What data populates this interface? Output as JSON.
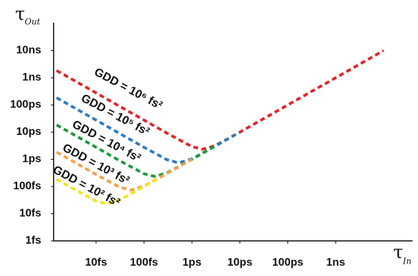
{
  "chart_data": {
    "type": "line",
    "x_label": "τ",
    "x_label_sub": "In",
    "y_label": "τ",
    "y_label_sub": "Out",
    "log_x": true,
    "log_y": true,
    "xlim": [
      1.3,
      40000000
    ],
    "ylim": [
      1,
      100000000
    ],
    "xticks": [
      {
        "value": 10,
        "label": "10fs"
      },
      {
        "value": 100,
        "label": "100fs"
      },
      {
        "value": 1000,
        "label": "1ps"
      },
      {
        "value": 10000,
        "label": "10ps"
      },
      {
        "value": 100000,
        "label": "100ps"
      },
      {
        "value": 1000000,
        "label": "1ns"
      }
    ],
    "yticks": [
      {
        "value": 1,
        "label": "1fs"
      },
      {
        "value": 10,
        "label": "10fs"
      },
      {
        "value": 100,
        "label": "100fs"
      },
      {
        "value": 1000,
        "label": "1ps"
      },
      {
        "value": 10000,
        "label": "10ps"
      },
      {
        "value": 100000,
        "label": "100ps"
      },
      {
        "value": 1000000,
        "label": "1ns"
      },
      {
        "value": 10000000,
        "label": "10ns"
      }
    ],
    "series": [
      {
        "color": "#e0262a",
        "annotation": "GDD = 10⁶ fs²",
        "x": [
          1.5,
          3,
          10,
          30,
          100,
          300,
          1000,
          1664,
          3000,
          10000,
          100000,
          1000000,
          10000000
        ],
        "values": [
          1846667,
          923333,
          277000,
          92333,
          27700,
          9238,
          2945,
          2354,
          3139,
          10000,
          100000,
          1000000,
          10000000
        ]
      },
      {
        "color": "#2e7cc2",
        "annotation": "GDD = 10⁵ fs²",
        "x": [
          1.5,
          3,
          10,
          30,
          100,
          300,
          526,
          1000,
          3000,
          10000
        ],
        "values": [
          184667,
          92333,
          27700,
          9233,
          2770,
          971,
          744,
          1037,
          3000,
          10000
        ]
      },
      {
        "color": "#1a9a3a",
        "annotation": "GDD = 10⁴ fs²",
        "x": [
          1.5,
          3,
          10,
          30,
          100,
          166,
          300,
          1000,
          3000
        ],
        "values": [
          18467,
          9233,
          2770,
          923,
          294,
          235,
          314,
          1000,
          3000
        ]
      },
      {
        "color": "#f5a04a",
        "annotation": "GDD = 10³ fs²",
        "x": [
          1.5,
          3,
          10,
          30,
          53,
          100,
          300,
          1000
        ],
        "values": [
          1847,
          923,
          277,
          97,
          74,
          104,
          300,
          1000
        ]
      },
      {
        "color": "#f2e31a",
        "annotation": "GDD = 10² fs²",
        "x": [
          1.5,
          3,
          10,
          17,
          30,
          100,
          200
        ],
        "values": [
          185,
          92,
          29,
          23,
          31,
          100,
          200
        ]
      }
    ]
  }
}
